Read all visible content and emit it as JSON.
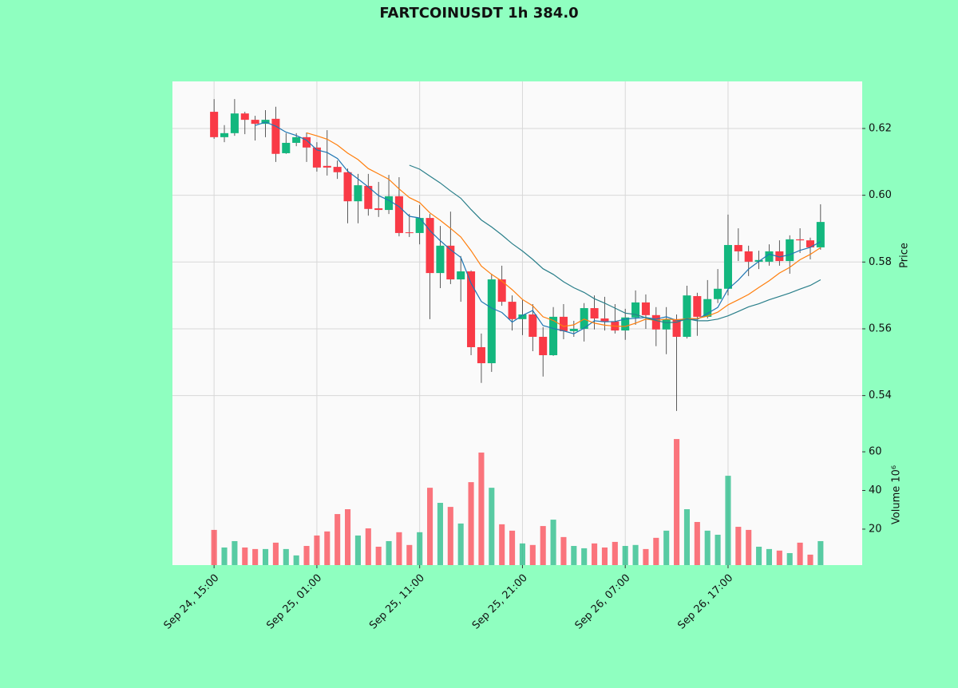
{
  "chart_data": {
    "type": "candlestick",
    "title": "FARTCOINUSDT 1h 384.0",
    "ylabel": "Price",
    "y2label": "Volume  10⁶",
    "categories": [
      "Sep 24, 15:00",
      null,
      null,
      null,
      null,
      null,
      null,
      null,
      null,
      null,
      "Sep 25, 01:00",
      null,
      null,
      null,
      null,
      null,
      null,
      null,
      null,
      null,
      "Sep 25, 11:00",
      null,
      null,
      null,
      null,
      null,
      null,
      null,
      null,
      null,
      "Sep 25, 21:00",
      null,
      null,
      null,
      null,
      null,
      null,
      null,
      null,
      null,
      "Sep 26, 07:00",
      null,
      null,
      null,
      null,
      null,
      null,
      null,
      null,
      null,
      "Sep 26, 17:00",
      null,
      null,
      null,
      null,
      null,
      null,
      null,
      null,
      null
    ],
    "open": [
      0.625,
      0.6174,
      0.6186,
      0.6245,
      0.6226,
      0.6214,
      0.6229,
      0.6126,
      0.6157,
      0.6174,
      0.6143,
      0.6088,
      0.6085,
      0.6069,
      0.5982,
      0.6028,
      0.5961,
      0.5956,
      0.5997,
      0.5889,
      0.5887,
      0.5932,
      0.5767,
      0.5849,
      0.5748,
      0.5772,
      0.5545,
      0.5497,
      0.5748,
      0.5681,
      0.5629,
      0.5643,
      0.5576,
      0.5521,
      0.5636,
      0.5593,
      0.56,
      0.5662,
      0.5631,
      0.5622,
      0.5595,
      0.5634,
      0.5679,
      0.5641,
      0.5598,
      0.5629,
      0.5576,
      0.5698,
      0.5636,
      0.5689,
      0.572,
      0.5851,
      0.5832,
      0.5801,
      0.5801,
      0.5832,
      0.5803,
      0.5868,
      0.5865,
      0.5844
    ],
    "high": [
      0.6288,
      0.621,
      0.6288,
      0.625,
      0.6238,
      0.6255,
      0.6265,
      0.6186,
      0.6186,
      0.6188,
      0.6159,
      0.6195,
      0.6104,
      0.608,
      0.6064,
      0.6064,
      0.604,
      0.6061,
      0.6054,
      0.5944,
      0.5971,
      0.5944,
      0.5908,
      0.5951,
      0.5818,
      0.5775,
      0.5586,
      0.5765,
      0.5789,
      0.57,
      0.5686,
      0.5674,
      0.5605,
      0.5665,
      0.5674,
      0.5624,
      0.5677,
      0.57,
      0.5696,
      0.5674,
      0.566,
      0.5715,
      0.5703,
      0.5665,
      0.5665,
      0.5643,
      0.5729,
      0.5708,
      0.5746,
      0.5779,
      0.5942,
      0.5901,
      0.5849,
      0.5834,
      0.5853,
      0.5865,
      0.588,
      0.5901,
      0.5873,
      0.5973
    ],
    "low": [
      0.6169,
      0.6159,
      0.6178,
      0.6183,
      0.6164,
      0.6174,
      0.61,
      0.6124,
      0.6147,
      0.61,
      0.6071,
      0.6059,
      0.6049,
      0.5916,
      0.5916,
      0.5939,
      0.5935,
      0.5944,
      0.5877,
      0.5875,
      0.5853,
      0.5629,
      0.5722,
      0.5734,
      0.5681,
      0.5521,
      0.5438,
      0.5471,
      0.5669,
      0.5595,
      0.5581,
      0.5533,
      0.5457,
      0.5519,
      0.5569,
      0.5576,
      0.5562,
      0.5598,
      0.5595,
      0.5586,
      0.5567,
      0.5612,
      0.56,
      0.5548,
      0.5524,
      0.5354,
      0.5571,
      0.5579,
      0.5631,
      0.5677,
      0.57,
      0.5803,
      0.5758,
      0.5779,
      0.5789,
      0.5789,
      0.5765,
      0.5827,
      0.5808,
      0.5837
    ],
    "close": [
      0.6174,
      0.6186,
      0.6245,
      0.6226,
      0.6214,
      0.6226,
      0.6124,
      0.6157,
      0.6174,
      0.6143,
      0.6083,
      0.6083,
      0.6069,
      0.5982,
      0.603,
      0.5959,
      0.5956,
      0.5997,
      0.5887,
      0.5887,
      0.5932,
      0.5767,
      0.5849,
      0.5748,
      0.5772,
      0.5545,
      0.5497,
      0.5748,
      0.5681,
      0.5629,
      0.5643,
      0.5576,
      0.5521,
      0.5636,
      0.5593,
      0.56,
      0.5662,
      0.5631,
      0.5621,
      0.5595,
      0.5634,
      0.5679,
      0.5641,
      0.5598,
      0.5629,
      0.5576,
      0.57,
      0.5636,
      0.5689,
      0.572,
      0.5851,
      0.5832,
      0.5801,
      0.5806,
      0.5832,
      0.5803,
      0.5868,
      0.5865,
      0.5844,
      0.592
    ],
    "volume": [
      19.6,
      10.5,
      13.8,
      10.5,
      9.7,
      9.7,
      13,
      9.7,
      6.4,
      11.3,
      16.7,
      18.8,
      27.8,
      30.3,
      16.7,
      20.4,
      10.9,
      13.8,
      18.4,
      11.8,
      18.4,
      41.4,
      33.6,
      31.5,
      22.9,
      44.3,
      59.6,
      41.4,
      22.5,
      19.2,
      12.6,
      11.8,
      21.6,
      24.9,
      15.9,
      11.3,
      10.1,
      12.6,
      10.5,
      13.4,
      11.3,
      11.8,
      9.7,
      15.5,
      19.2,
      66.6,
      30.3,
      23.7,
      19.2,
      17.1,
      47.6,
      21.2,
      19.6,
      10.9,
      9.7,
      8.9,
      7.6,
      13,
      6.8,
      13.8
    ],
    "moving_averages": [
      {
        "color": "#1f77b4",
        "values": [
          null,
          null,
          null,
          null,
          0.6209,
          0.6219,
          0.6207,
          0.6189,
          0.6179,
          0.6165,
          0.6136,
          0.6128,
          0.611,
          0.6072,
          0.6049,
          0.6025,
          0.5999,
          0.5985,
          0.5966,
          0.5937,
          0.5932,
          0.5894,
          0.5864,
          0.5837,
          0.5814,
          0.5736,
          0.5682,
          0.5662,
          0.5649,
          0.562,
          0.564,
          0.5655,
          0.561,
          0.5601,
          0.5594,
          0.5585,
          0.5602,
          0.5624,
          0.5621,
          0.5622,
          0.5629,
          0.5632,
          0.5634,
          0.5629,
          0.5636,
          0.5625,
          0.5629,
          0.5628,
          0.5646,
          0.5664,
          0.5719,
          0.5746,
          0.5779,
          0.5802,
          0.5824,
          0.5815,
          0.5822,
          0.5835,
          0.5844,
          0.5861
        ]
      },
      {
        "color": "#ff7f0e",
        "values": [
          null,
          null,
          null,
          null,
          null,
          null,
          null,
          null,
          null,
          0.6187,
          0.6178,
          0.6168,
          0.615,
          0.6126,
          0.6107,
          0.608,
          0.6064,
          0.6048,
          0.6019,
          0.5993,
          0.5978,
          0.5947,
          0.5925,
          0.5901,
          0.5875,
          0.5834,
          0.5788,
          0.5763,
          0.5743,
          0.5717,
          0.5688,
          0.5669,
          0.5636,
          0.5625,
          0.5607,
          0.5612,
          0.5629,
          0.5617,
          0.5611,
          0.5608,
          0.5607,
          0.5617,
          0.5629,
          0.5625,
          0.5629,
          0.5627,
          0.563,
          0.5631,
          0.5638,
          0.565,
          0.5672,
          0.5687,
          0.5703,
          0.5724,
          0.5744,
          0.5767,
          0.5784,
          0.5807,
          0.5823,
          0.5843
        ]
      },
      {
        "color": "#2a7f8a",
        "values": [
          null,
          null,
          null,
          null,
          null,
          null,
          null,
          null,
          null,
          null,
          null,
          null,
          null,
          null,
          null,
          null,
          null,
          null,
          null,
          0.609,
          0.6078,
          0.6057,
          0.6037,
          0.6013,
          0.5991,
          0.5957,
          0.5926,
          0.5905,
          0.5881,
          0.5855,
          0.5833,
          0.5808,
          0.578,
          0.5763,
          0.5741,
          0.5723,
          0.5709,
          0.569,
          0.5677,
          0.5662,
          0.5647,
          0.5643,
          0.5633,
          0.5625,
          0.5618,
          0.562,
          0.563,
          0.5624,
          0.5624,
          0.5629,
          0.5639,
          0.5652,
          0.5666,
          0.5675,
          0.5687,
          0.5697,
          0.5707,
          0.5719,
          0.573,
          0.5747
        ]
      }
    ],
    "up_color": "#13b77e",
    "down_color": "#f93a46",
    "ylim": [
      0.5282,
      0.6341
    ],
    "yticks": [
      0.54,
      0.56,
      0.58,
      {
        "value": 0.6,
        "label": "0.60"
      },
      0.62
    ],
    "y2lim": [
      1.4,
      68.7
    ],
    "y2ticks": [
      20,
      40,
      60
    ],
    "grid": true
  }
}
